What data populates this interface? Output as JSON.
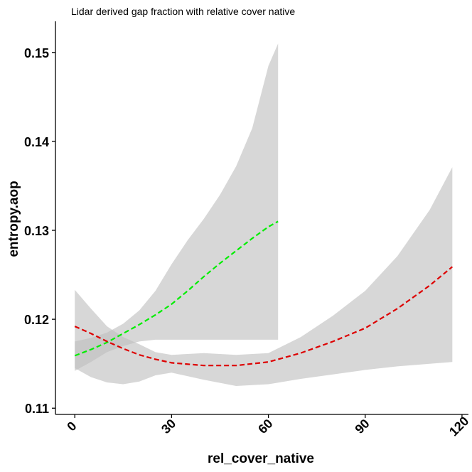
{
  "chart_data": {
    "type": "line",
    "title": "Lidar derived gap fraction with relative cover native",
    "xlabel": "rel_cover_native",
    "ylabel": "entropy.aop",
    "xlim": [
      -6,
      122
    ],
    "ylim": [
      0.1093,
      0.1535
    ],
    "x_ticks": [
      "0",
      "30",
      "60",
      "90",
      "120"
    ],
    "x_tick_values": [
      0,
      30,
      60,
      90,
      120
    ],
    "y_ticks": [
      "0.11",
      "0.12",
      "0.13",
      "0.14",
      "0.15"
    ],
    "y_tick_values": [
      0.11,
      0.12,
      0.13,
      0.14,
      0.15
    ],
    "grid": false,
    "legend": "none",
    "series": [
      {
        "color": "#00ee00",
        "line_style": "dashed",
        "band_color": "#bebebe",
        "x": [
          0,
          5,
          10,
          15,
          20,
          25,
          30,
          35,
          40,
          45,
          50,
          55,
          60,
          63
        ],
        "y": [
          0.1159,
          0.1166,
          0.1174,
          0.1184,
          0.1194,
          0.1205,
          0.1217,
          0.1232,
          0.1248,
          0.1263,
          0.1277,
          0.1291,
          0.1304,
          0.131
        ],
        "upper": [
          0.1175,
          0.1179,
          0.1185,
          0.1195,
          0.121,
          0.1232,
          0.1262,
          0.1289,
          0.1313,
          0.134,
          0.1372,
          0.1415,
          0.1485,
          0.151
        ],
        "lower": [
          0.1142,
          0.1152,
          0.1163,
          0.117,
          0.1175,
          0.1177,
          0.1177,
          0.1177,
          0.1177,
          0.1177,
          0.1177,
          0.1177,
          0.1177,
          0.1177
        ]
      },
      {
        "color": "#dd0000",
        "line_style": "dashed",
        "band_color": "#bebebe",
        "x": [
          0,
          5,
          10,
          15,
          20,
          25,
          30,
          40,
          50,
          60,
          70,
          80,
          90,
          100,
          110,
          117
        ],
        "y": [
          0.1192,
          0.1184,
          0.1175,
          0.1167,
          0.116,
          0.1155,
          0.1151,
          0.1148,
          0.1148,
          0.1152,
          0.1162,
          0.1175,
          0.119,
          0.1212,
          0.1238,
          0.1259
        ],
        "upper": [
          0.1233,
          0.1212,
          0.1192,
          0.118,
          0.1172,
          0.1163,
          0.116,
          0.1162,
          0.116,
          0.1162,
          0.118,
          0.1204,
          0.1232,
          0.1271,
          0.1323,
          0.1371
        ],
        "lower": [
          0.1145,
          0.1135,
          0.1129,
          0.1127,
          0.113,
          0.1137,
          0.114,
          0.1132,
          0.1125,
          0.1127,
          0.1133,
          0.1138,
          0.1143,
          0.1147,
          0.115,
          0.1152
        ]
      }
    ]
  }
}
